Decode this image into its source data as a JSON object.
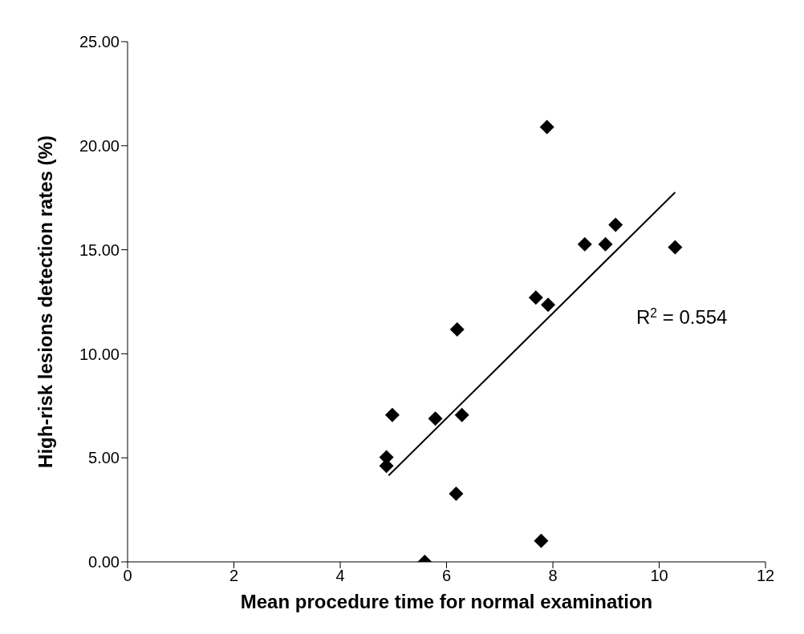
{
  "chart_data": {
    "type": "scatter",
    "xlabel": "Mean procedure time for normal examination",
    "ylabel": "High-risk lesions detection rates (%)",
    "annotations": [
      "R$^{2}$ = 0.554"
    ],
    "series": [
      {
        "type": "scatter",
        "color": "#000000",
        "marker": "diamond",
        "x": [
          4.87,
          4.87,
          4.98,
          5.59,
          5.79,
          6.18,
          6.2,
          6.29,
          7.68,
          7.78,
          7.89,
          7.91,
          8.6,
          8.99,
          9.18,
          10.3
        ],
        "values": [
          5.03,
          4.61,
          7.06,
          0,
          6.89,
          3.27,
          11.17,
          7.06,
          12.7,
          1.01,
          20.9,
          12.36,
          15.26,
          15.26,
          16.2,
          15.12
        ]
      },
      {
        "type": "line",
        "color": "#000000",
        "marker": "none",
        "x": [
          4.91,
          10.3
        ],
        "values": [
          4.15,
          17.76
        ]
      }
    ],
    "xlim": [
      0,
      12
    ],
    "xticks": [
      0,
      2,
      4,
      6,
      8,
      10,
      12
    ],
    "ylim": [
      0,
      25
    ],
    "yticks": [
      {
        "value": 0,
        "label": "0.00"
      },
      {
        "value": 5,
        "label": "5.00"
      },
      {
        "value": 10,
        "label": "10.00"
      },
      {
        "value": 15,
        "label": "15.00"
      },
      {
        "value": 20,
        "label": "20.00"
      },
      {
        "value": 25,
        "label": "25.00"
      }
    ],
    "grid": false
  }
}
